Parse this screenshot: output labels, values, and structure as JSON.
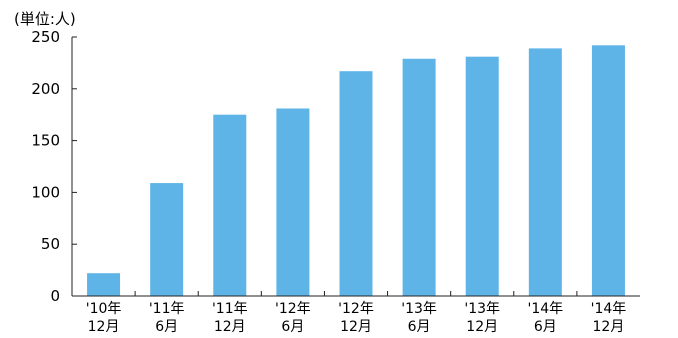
{
  "chart_data": {
    "type": "bar",
    "unit_label": "(単位:人)",
    "categories": [
      {
        "line1": "'10年",
        "line2": "12月"
      },
      {
        "line1": "'11年",
        "line2": "6月"
      },
      {
        "line1": "'11年",
        "line2": "12月"
      },
      {
        "line1": "'12年",
        "line2": "6月"
      },
      {
        "line1": "'12年",
        "line2": "12月"
      },
      {
        "line1": "'13年",
        "line2": "6月"
      },
      {
        "line1": "'13年",
        "line2": "12月"
      },
      {
        "line1": "'14年",
        "line2": "6月"
      },
      {
        "line1": "'14年",
        "line2": "12月"
      }
    ],
    "values": [
      22,
      109,
      175,
      181,
      217,
      229,
      231,
      239,
      242
    ],
    "ylim": [
      0,
      250
    ],
    "yticks": [
      0,
      50,
      100,
      150,
      200,
      250
    ],
    "grid": false,
    "legend": "none",
    "colors": {
      "bar": "#5eb4e7",
      "axis": "#222222",
      "text": "#000000"
    }
  }
}
